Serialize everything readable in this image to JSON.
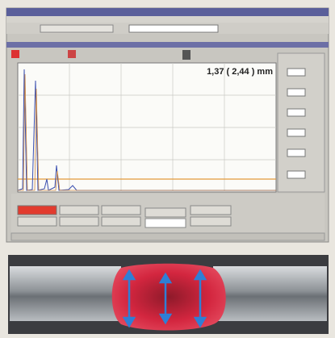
{
  "measurement": {
    "reading": "1,37 ( 2,44 ) mm"
  }
}
